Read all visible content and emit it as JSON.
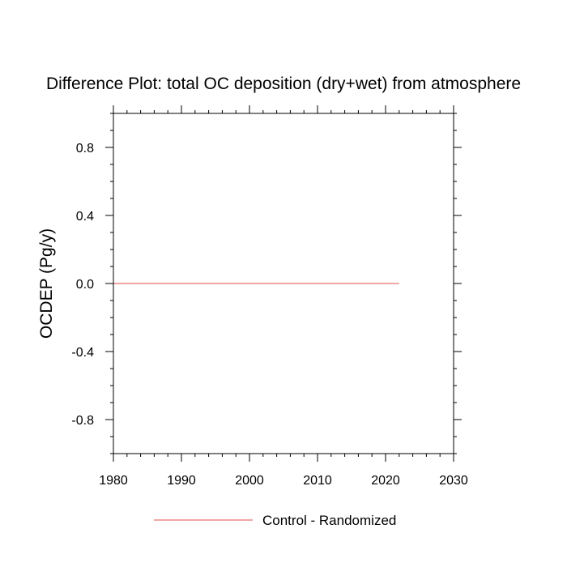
{
  "chart_data": {
    "type": "line",
    "title": "Difference Plot: total OC deposition (dry+wet) from atmosphere",
    "ylabel": "OCDEP  (Pg/y)",
    "xlabel": "",
    "xlim": [
      1980,
      2030
    ],
    "ylim": [
      -1.0,
      1.0
    ],
    "x_ticks": [
      1980,
      1990,
      2000,
      2010,
      2020,
      2030
    ],
    "x_tick_labels": [
      "1980",
      "1990",
      "2000",
      "2010",
      "2020",
      "2030"
    ],
    "y_ticks": [
      0.8,
      0.4,
      0.0,
      -0.4,
      -0.8
    ],
    "y_tick_labels": [
      "0.8",
      "0.4",
      "0.0",
      "-0.4",
      "-0.8"
    ],
    "grid": false,
    "legend_position": "bottom-center",
    "series": [
      {
        "name": "Control - Randomized",
        "color": "#e8706e",
        "x": [
          1980,
          2022
        ],
        "y": [
          0.0,
          0.0
        ]
      }
    ]
  }
}
